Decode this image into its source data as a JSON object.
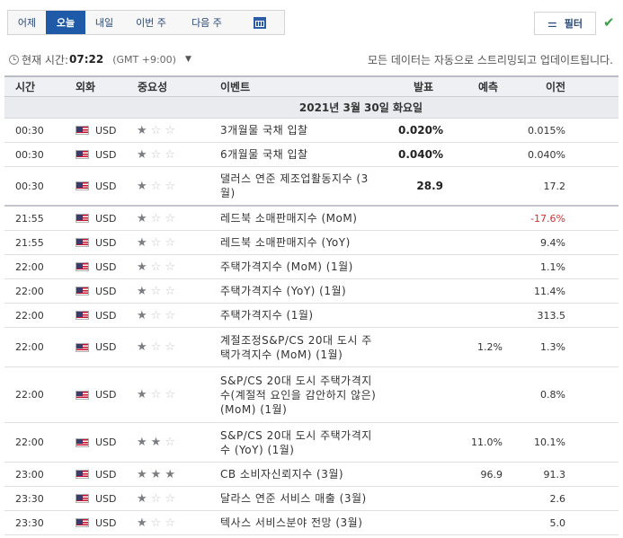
{
  "tabs": [
    {
      "label": "어제",
      "active": false
    },
    {
      "label": "오늘",
      "active": true
    },
    {
      "label": "내일",
      "active": false
    },
    {
      "label": "이번 주",
      "active": false
    },
    {
      "label": "다음 주",
      "active": false
    }
  ],
  "calendar_icon": "calendar-icon",
  "filter": {
    "label": "필터",
    "icon": "filter-icon"
  },
  "status_icon": "check-icon",
  "time_bar": {
    "label": "현재 시간:",
    "value": "07:22",
    "timezone": "(GMT +9:00)",
    "note": "모든 데이터는 자동으로 스트리밍되고 업데이트됩니다."
  },
  "columns": {
    "time": "시간",
    "currency": "외화",
    "importance": "중요성",
    "event": "이벤트",
    "actual": "발표",
    "forecast": "예측",
    "previous": "이전"
  },
  "date_band": "2021년 3월 30일 화요일",
  "rows": [
    {
      "time": "00:30",
      "currency": "USD",
      "importance": 1,
      "event": "3개월물 국채 입찰",
      "actual": "0.020%",
      "forecast": "",
      "previous": "0.015%",
      "prev_negative": false,
      "h": 27,
      "sep": false
    },
    {
      "time": "00:30",
      "currency": "USD",
      "importance": 1,
      "event": "6개월물 국채 입찰",
      "actual": "0.040%",
      "forecast": "",
      "previous": "0.040%",
      "prev_negative": false,
      "h": 27,
      "sep": false
    },
    {
      "time": "00:30",
      "currency": "USD",
      "importance": 1,
      "event": "댈러스 연준 제조업활동지수 (3월)",
      "actual": "28.9",
      "forecast": "",
      "previous": "17.2",
      "prev_negative": false,
      "h": 44,
      "sep": true
    },
    {
      "time": "21:55",
      "currency": "USD",
      "importance": 1,
      "event": "레드북 소매판매지수 (MoM)",
      "actual": "",
      "forecast": "",
      "previous": "-17.6%",
      "prev_negative": true,
      "h": 27,
      "sep": false
    },
    {
      "time": "21:55",
      "currency": "USD",
      "importance": 1,
      "event": "레드북 소매판매지수 (YoY)",
      "actual": "",
      "forecast": "",
      "previous": "9.4%",
      "prev_negative": false,
      "h": 27,
      "sep": false
    },
    {
      "time": "22:00",
      "currency": "USD",
      "importance": 1,
      "event": "주택가격지수 (MoM) (1월)",
      "actual": "",
      "forecast": "",
      "previous": "1.1%",
      "prev_negative": false,
      "h": 27,
      "sep": false
    },
    {
      "time": "22:00",
      "currency": "USD",
      "importance": 1,
      "event": "주택가격지수 (YoY) (1월)",
      "actual": "",
      "forecast": "",
      "previous": "11.4%",
      "prev_negative": false,
      "h": 27,
      "sep": false
    },
    {
      "time": "22:00",
      "currency": "USD",
      "importance": 1,
      "event": "주택가격지수 (1월)",
      "actual": "",
      "forecast": "",
      "previous": "313.5",
      "prev_negative": false,
      "h": 27,
      "sep": false
    },
    {
      "time": "22:00",
      "currency": "USD",
      "importance": 1,
      "event": "계절조정S&P/CS 20대 도시 주택가격지수 (MoM) (1월)",
      "actual": "",
      "forecast": "1.2%",
      "previous": "1.3%",
      "prev_negative": false,
      "h": 44,
      "sep": false
    },
    {
      "time": "22:00",
      "currency": "USD",
      "importance": 1,
      "event": "S&P/CS 20대 도시 주택가격지수(계절적 요인을 감안하지 않은) (MoM) (1월)",
      "actual": "",
      "forecast": "",
      "previous": "0.8%",
      "prev_negative": false,
      "h": 62,
      "sep": false
    },
    {
      "time": "22:00",
      "currency": "USD",
      "importance": 2,
      "event": "S&P/CS 20대 도시 주택가격지수 (YoY) (1월)",
      "actual": "",
      "forecast": "11.0%",
      "previous": "10.1%",
      "prev_negative": false,
      "h": 44,
      "sep": false
    },
    {
      "time": "23:00",
      "currency": "USD",
      "importance": 3,
      "event": "CB 소비자신뢰지수 (3월)",
      "actual": "",
      "forecast": "96.9",
      "previous": "91.3",
      "prev_negative": false,
      "h": 27,
      "sep": false
    },
    {
      "time": "23:30",
      "currency": "USD",
      "importance": 1,
      "event": "달라스 연준 서비스 매출 (3월)",
      "actual": "",
      "forecast": "",
      "previous": "2.6",
      "prev_negative": false,
      "h": 27,
      "sep": false
    },
    {
      "time": "23:30",
      "currency": "USD",
      "importance": 1,
      "event": "텍사스 서비스분야 전망 (3월)",
      "actual": "",
      "forecast": "",
      "previous": "5.0",
      "prev_negative": false,
      "h": 27,
      "sep": false
    }
  ]
}
